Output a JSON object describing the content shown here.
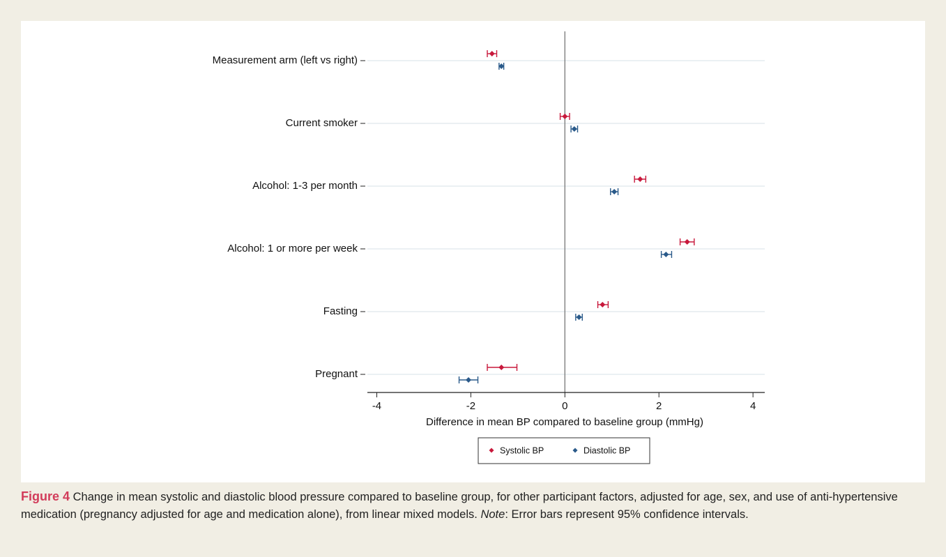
{
  "chart_data": {
    "type": "forest",
    "x_label": "Difference in mean BP compared to baseline group (mmHg)",
    "categories": [
      "Measurement arm (left vs right)",
      "Current smoker",
      "Alcohol: 1-3 per month",
      "Alcohol: 1 or more per week",
      "Fasting",
      "Pregnant"
    ],
    "series": [
      {
        "name": "Systolic BP",
        "color": "#c8193c",
        "values": [
          -1.55,
          0.0,
          1.6,
          2.6,
          0.8,
          -1.35
        ],
        "lower": [
          -1.65,
          -0.1,
          1.48,
          2.45,
          0.7,
          -1.65
        ],
        "upper": [
          -1.45,
          0.1,
          1.72,
          2.75,
          0.92,
          -1.02
        ]
      },
      {
        "name": "Diastolic BP",
        "color": "#2a5a8a",
        "values": [
          -1.35,
          0.2,
          1.05,
          2.15,
          0.3,
          -2.05
        ],
        "lower": [
          -1.4,
          0.13,
          0.97,
          2.05,
          0.23,
          -2.25
        ],
        "upper": [
          -1.3,
          0.27,
          1.13,
          2.27,
          0.37,
          -1.85
        ]
      }
    ],
    "xlim": [
      -4.2,
      4.25
    ],
    "xticks": [
      -4,
      -2,
      0,
      2,
      4
    ],
    "refline": 0,
    "grid": true,
    "legend": "bottom"
  },
  "caption": {
    "label": "Figure 4",
    "text": "Change in mean systolic and diastolic blood pressure compared to baseline group, for other participant factors, adjusted for age, sex, and use of anti-hypertensive medication (pregnancy adjusted for age and medication alone), from linear mixed models.",
    "note": "Note",
    "note_text": ": Error bars represent 95% confidence intervals."
  }
}
